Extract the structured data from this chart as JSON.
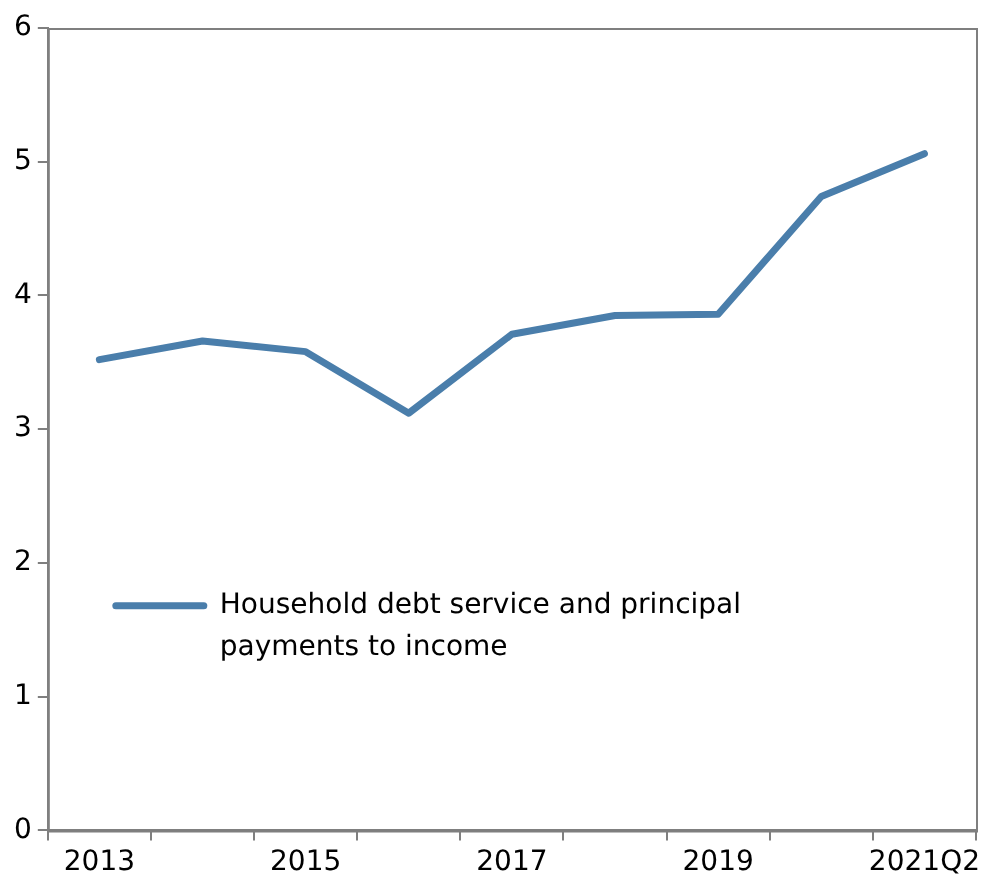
{
  "chart_data": {
    "type": "line",
    "categories": [
      "2013",
      null,
      "2015",
      null,
      "2017",
      null,
      "2019",
      null,
      "2021Q2"
    ],
    "series": [
      {
        "name": "Household debt service and principal payments to income",
        "color": "#4a7eab",
        "values": [
          3.52,
          3.66,
          3.58,
          3.12,
          3.71,
          3.85,
          3.86,
          4.74,
          5.06
        ]
      }
    ],
    "ylim": [
      0,
      6
    ],
    "yticks": [
      0,
      1,
      2,
      3,
      4,
      5,
      6
    ],
    "grid": false,
    "legend": "left",
    "marker": "none",
    "line_style": "solid"
  }
}
